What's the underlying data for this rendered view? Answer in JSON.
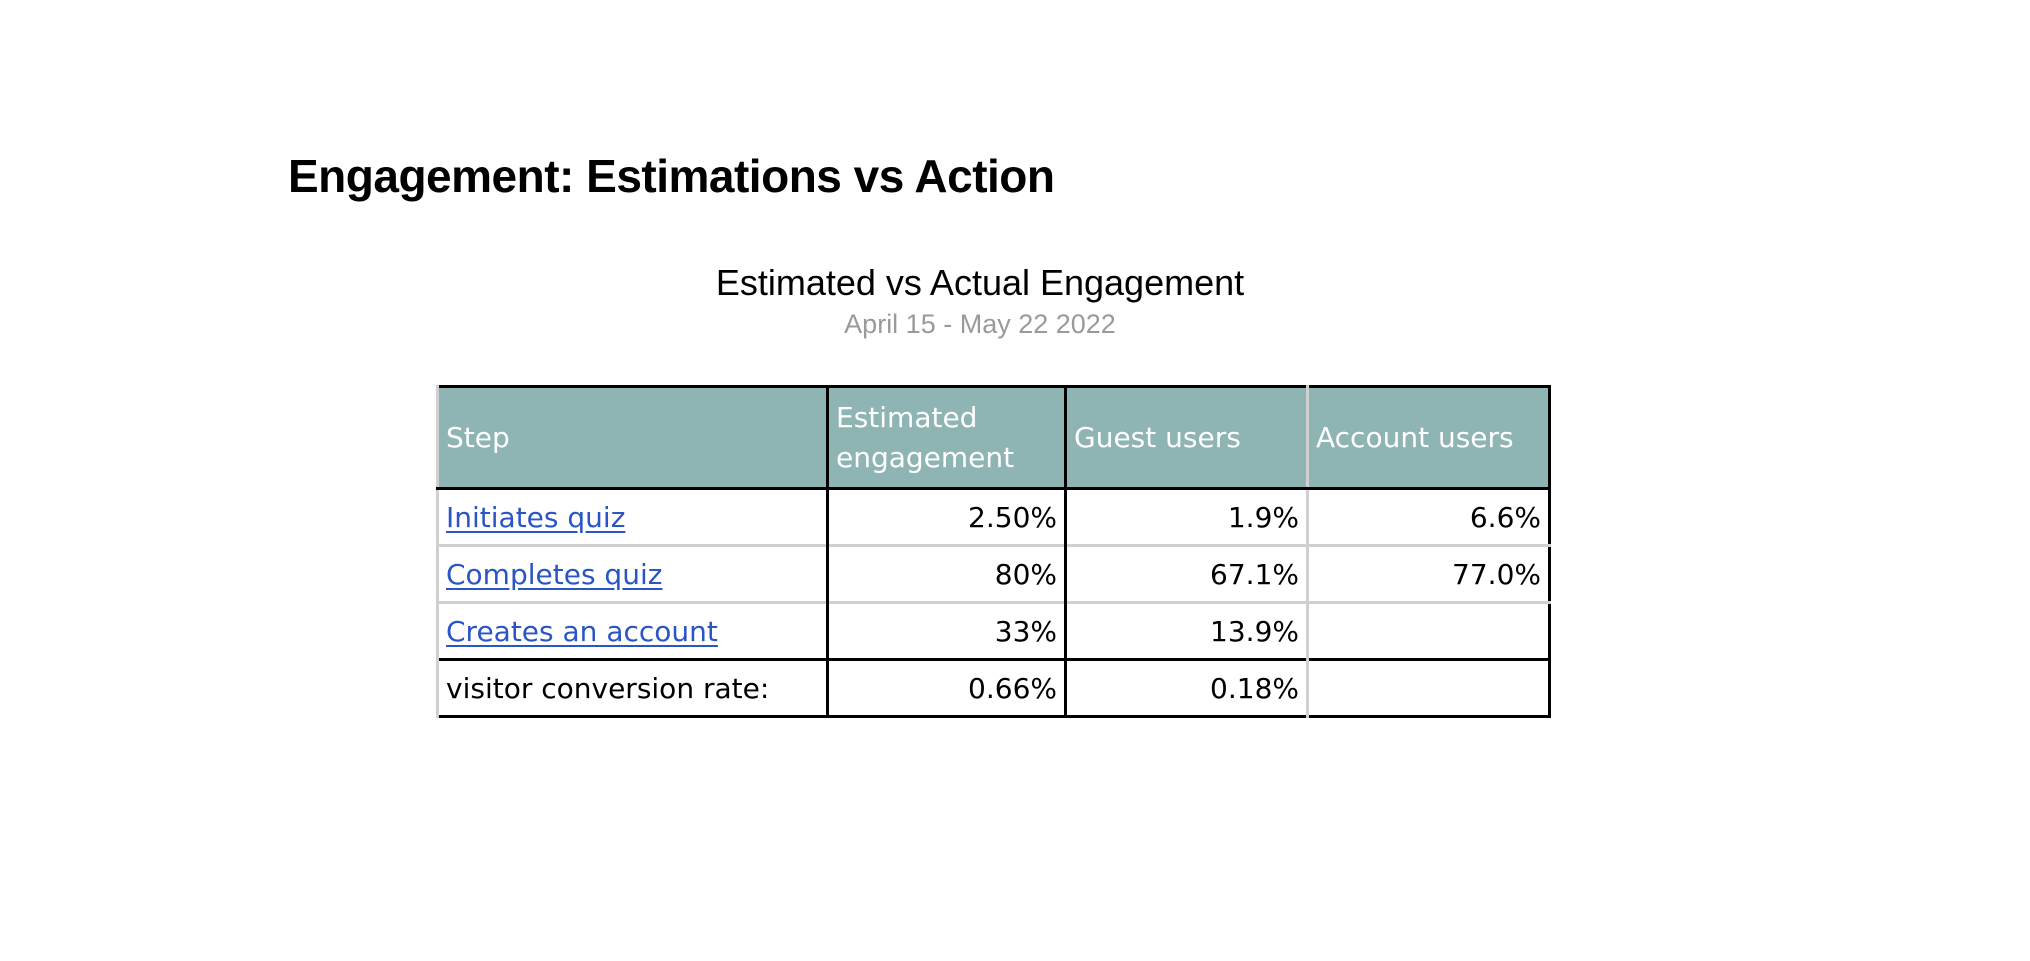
{
  "page": {
    "title": "Engagement: Estimations vs Action"
  },
  "table": {
    "title": "Estimated vs Actual Engagement",
    "subtitle": "April 15 - May 22 2022",
    "headers": [
      "Step",
      "Estimated engagement",
      "Guest users",
      "Account users"
    ],
    "rows": [
      {
        "step": "Initiates quiz",
        "estimated": "2.50%",
        "guest": "1.9%",
        "account": "6.6%"
      },
      {
        "step": "Completes quiz",
        "estimated": "80%",
        "guest": "67.1%",
        "account": "77.0%"
      },
      {
        "step": "Creates an account",
        "estimated": "33%",
        "guest": "13.9%",
        "account": ""
      },
      {
        "step": "visitor conversion rate:",
        "estimated": "0.66%",
        "guest": "0.18%",
        "account": ""
      }
    ]
  },
  "colors": {
    "header_bg": "#8fb4b4",
    "link": "#2b55c4",
    "subtitle": "#9a9a9a"
  }
}
